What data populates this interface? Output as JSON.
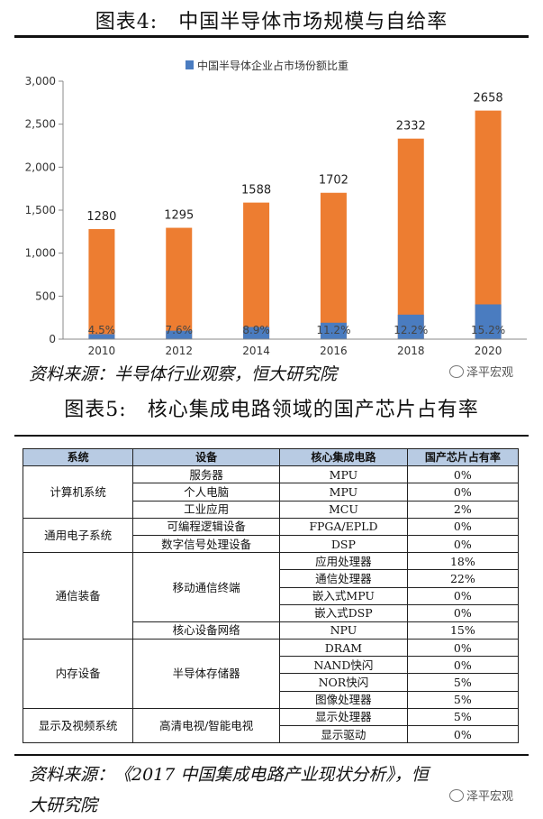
{
  "figure4": {
    "title": "图表4:　中国半导体市场规模与自给率"
  },
  "chart_data": {
    "type": "bar",
    "categories": [
      "2010",
      "2012",
      "2014",
      "2016",
      "2018",
      "2020"
    ],
    "series": [
      {
        "name": "",
        "color": "#ed7d31",
        "values": [
          1280,
          1295,
          1588,
          1702,
          2332,
          2658
        ]
      },
      {
        "name": "中国半导体企业占市场份额比重",
        "color": "#4a7cc0",
        "share_labels": [
          "4.5%",
          "7.6%",
          "8.9%",
          "11.2%",
          "12.2%",
          "15.2%"
        ],
        "values": [
          58,
          98,
          141,
          191,
          285,
          404
        ]
      }
    ],
    "total_labels": [
      "1280",
      "1295",
      "1588",
      "1702",
      "2332",
      "2658"
    ],
    "y_ticks": [
      "0",
      "500",
      "1,000",
      "1,500",
      "2,000",
      "2,500",
      "3,000"
    ],
    "ylim": [
      0,
      3000
    ],
    "grid": false,
    "legend": "top-center"
  },
  "source1": "资料来源：半导体行业观察，恒大研究院",
  "watermark": "泽平宏观",
  "figure5": {
    "title": "图表5:　核心集成电路领域的国产芯片占有率",
    "headers": [
      "系统",
      "设备",
      "核心集成电路",
      "国产芯片占有率"
    ],
    "systems": [
      "计算机系统",
      "通用电子系统",
      "通信装备",
      "内存设备",
      "显示及视频系统"
    ],
    "devices": [
      "服务器",
      "个人电脑",
      "工业应用",
      "可编程逻辑设备",
      "数字信号处理设备",
      "移动通信终端",
      "核心设备网络",
      "半导体存储器",
      "高清电视/智能电视"
    ],
    "chips": [
      "MPU",
      "MPU",
      "MCU",
      "FPGA/EPLD",
      "DSP",
      "应用处理器",
      "通信处理器",
      "嵌入式MPU",
      "嵌入式DSP",
      "NPU",
      "DRAM",
      "NAND快闪",
      "NOR快闪",
      "图像处理器",
      "显示处理器",
      "显示驱动"
    ],
    "shares": [
      "0%",
      "0%",
      "2%",
      "0%",
      "0%",
      "18%",
      "22%",
      "0%",
      "0%",
      "15%",
      "0%",
      "0%",
      "5%",
      "5%",
      "5%",
      "0%"
    ]
  },
  "source2_line1": "资料来源：《2017 中国集成电路产业现状分析》，恒",
  "source2_line2": "大研究院"
}
